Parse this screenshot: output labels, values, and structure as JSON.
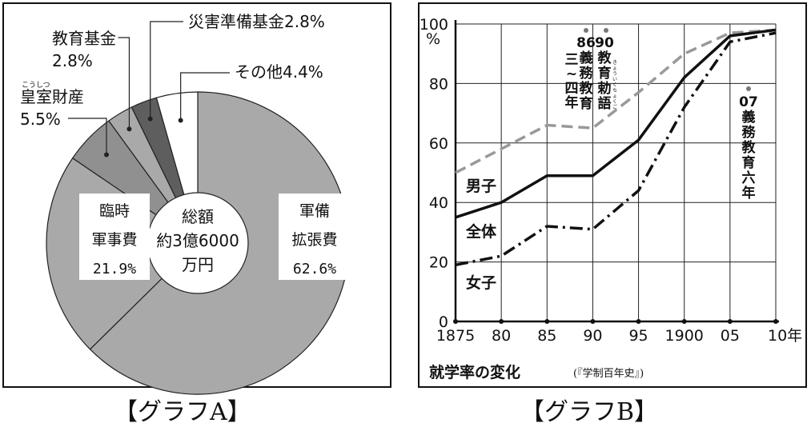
{
  "captions": {
    "graph_a": "【グラフA】",
    "graph_b": "【グラフB】"
  },
  "colors": {
    "military": "#a9a9a9",
    "grey_dark": "#5e5e5e",
    "line_gray": "#999999",
    "line_black": "#111111"
  },
  "chart_data": [
    {
      "type": "pie",
      "style": "donut",
      "center_label": [
        "総額",
        "約3億6000",
        "万円"
      ],
      "slices": [
        {
          "name": "軍備拡張費",
          "label_lines": [
            "軍備",
            "拡張費",
            "62.6%"
          ],
          "value": 62.6,
          "color": "#a9a9a9"
        },
        {
          "name": "臨時軍事費",
          "label_lines": [
            "臨時",
            "軍事費",
            "21.9%"
          ],
          "value": 21.9,
          "color": "#a9a9a9"
        },
        {
          "name": "皇室財産",
          "label_lines": [
            "皇室財産",
            "5.5%"
          ],
          "ruby": "こうしつ",
          "value": 5.5,
          "color": "#909090"
        },
        {
          "name": "教育基金",
          "label_lines": [
            "教育基金",
            "2.8%"
          ],
          "value": 2.8,
          "color": "#a9a9a9"
        },
        {
          "name": "災害準備基金",
          "label_lines": [
            "災害準備基金2.8%"
          ],
          "value": 2.8,
          "color": "#5e5e5e"
        },
        {
          "name": "その他",
          "label_lines": [
            "その他4.4%"
          ],
          "value": 4.4,
          "color": "#ffffff"
        }
      ]
    },
    {
      "type": "line",
      "title": "就学率の変化",
      "source": "(『学制百年史』)",
      "x": [
        1875,
        1880,
        1885,
        1890,
        1895,
        1900,
        1905,
        1910
      ],
      "x_tick_labels": [
        "1875",
        "80",
        "85",
        "90",
        "95",
        "1900",
        "05",
        "10年"
      ],
      "y_tick_labels": [
        "0",
        "20",
        "40",
        "60",
        "80",
        "100"
      ],
      "y_unit": "%",
      "ylim": [
        0,
        100
      ],
      "grid": true,
      "series": [
        {
          "name": "男子",
          "style": "dashed",
          "color": "#999999",
          "values": [
            50,
            58,
            66,
            65,
            77,
            90,
            97,
            98
          ]
        },
        {
          "name": "全体",
          "style": "solid",
          "color": "#111111",
          "values": [
            35,
            40,
            49,
            49,
            61,
            82,
            96,
            98
          ]
        },
        {
          "name": "女子",
          "style": "dashdot",
          "color": "#111111",
          "values": [
            19,
            22,
            32,
            31,
            44,
            72,
            94,
            97
          ]
        }
      ],
      "annotations": [
        {
          "id": "a86",
          "x": 1886,
          "lines": [
            "86",
            "義",
            "務",
            "教",
            "育"
          ],
          "lines2": [
            "三",
            "~",
            "四",
            "年"
          ]
        },
        {
          "id": "a90",
          "x": 1890,
          "lines": [
            "90",
            "教",
            "育",
            "勅",
            "語"
          ],
          "ruby": "きょういくちょくご"
        },
        {
          "id": "a07",
          "x": 1907,
          "lines": [
            "07",
            "義",
            "務",
            "教",
            "育",
            "六",
            "年"
          ]
        }
      ]
    }
  ]
}
